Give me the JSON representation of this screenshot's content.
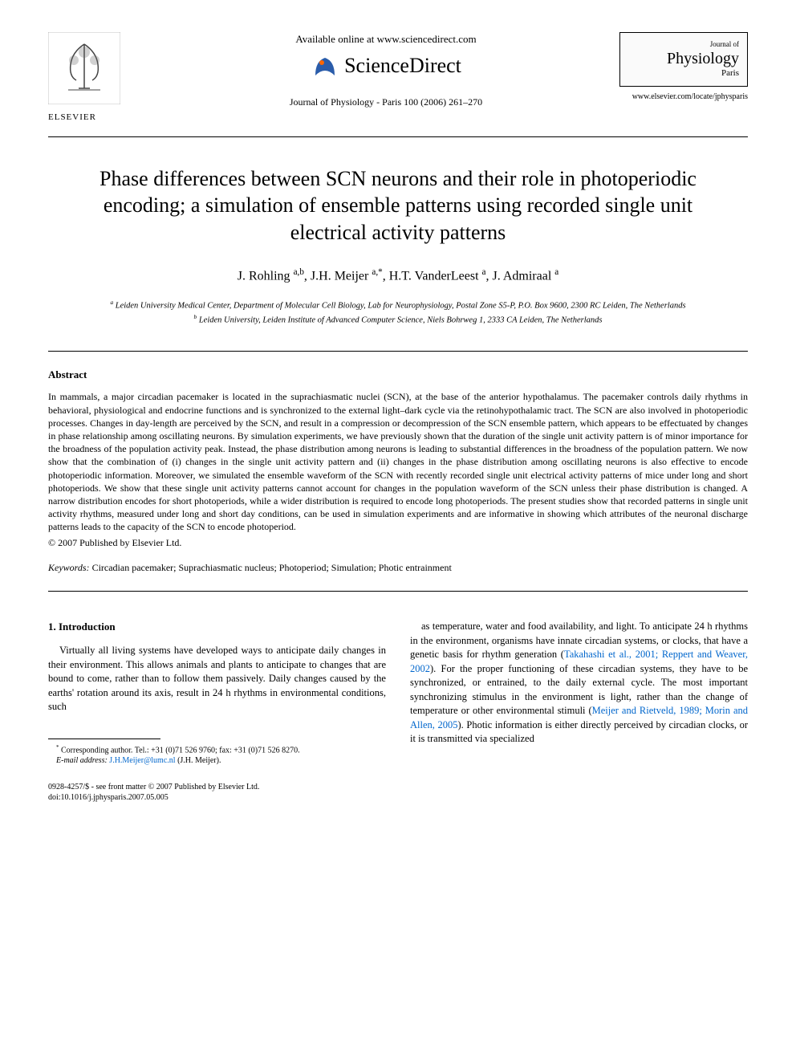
{
  "header": {
    "available_online": "Available online at www.sciencedirect.com",
    "sciencedirect": "ScienceDirect",
    "journal_info": "Journal of Physiology - Paris 100 (2006) 261–270",
    "elsevier": "ELSEVIER",
    "journal_box_small": "Journal of",
    "journal_box_title": "Physiology",
    "journal_box_sub": "Paris",
    "locate_url": "www.elsevier.com/locate/jphysparis"
  },
  "title": "Phase differences between SCN neurons and their role in photoperiodic encoding; a simulation of ensemble patterns using recorded single unit electrical activity patterns",
  "authors_html": "J. Rohling <sup>a,b</sup>, J.H. Meijer <sup>a,*</sup>, H.T. VanderLeest <sup>a</sup>, J. Admiraal <sup>a</sup>",
  "affiliations": {
    "a": "Leiden University Medical Center, Department of Molecular Cell Biology, Lab for Neurophysiology, Postal Zone S5-P, P.O. Box 9600, 2300 RC Leiden, The Netherlands",
    "b": "Leiden University, Leiden Institute of Advanced Computer Science, Niels Bohrweg 1, 2333 CA Leiden, The Netherlands"
  },
  "abstract": {
    "heading": "Abstract",
    "text": "In mammals, a major circadian pacemaker is located in the suprachiasmatic nuclei (SCN), at the base of the anterior hypothalamus. The pacemaker controls daily rhythms in behavioral, physiological and endocrine functions and is synchronized to the external light–dark cycle via the retinohypothalamic tract. The SCN are also involved in photoperiodic processes. Changes in day-length are perceived by the SCN, and result in a compression or decompression of the SCN ensemble pattern, which appears to be effectuated by changes in phase relationship among oscillating neurons. By simulation experiments, we have previously shown that the duration of the single unit activity pattern is of minor importance for the broadness of the population activity peak. Instead, the phase distribution among neurons is leading to substantial differences in the broadness of the population pattern. We now show that the combination of (i) changes in the single unit activity pattern and (ii) changes in the phase distribution among oscillating neurons is also effective to encode photoperiodic information. Moreover, we simulated the ensemble waveform of the SCN with recently recorded single unit electrical activity patterns of mice under long and short photoperiods. We show that these single unit activity patterns cannot account for changes in the population waveform of the SCN unless their phase distribution is changed. A narrow distribution encodes for short photoperiods, while a wider distribution is required to encode long photoperiods. The present studies show that recorded patterns in single unit activity rhythms, measured under long and short day conditions, can be used in simulation experiments and are informative in showing which attributes of the neuronal discharge patterns leads to the capacity of the SCN to encode photoperiod.",
    "copyright": "© 2007 Published by Elsevier Ltd."
  },
  "keywords": {
    "label": "Keywords:",
    "text": "Circadian pacemaker; Suprachiasmatic nucleus; Photoperiod; Simulation; Photic entrainment"
  },
  "intro": {
    "heading": "1. Introduction",
    "col1": "Virtually all living systems have developed ways to anticipate daily changes in their environment. This allows animals and plants to anticipate to changes that are bound to come, rather than to follow them passively. Daily changes caused by the earths' rotation around its axis, result in 24 h rhythms in environmental conditions, such",
    "col2_part1": "as temperature, water and food availability, and light. To anticipate 24 h rhythms in the environment, organisms have innate circadian systems, or clocks, that have a genetic basis for rhythm generation (",
    "col2_ref1": "Takahashi et al., 2001; Reppert and Weaver, 2002",
    "col2_part2": "). For the proper functioning of these circadian systems, they have to be synchronized, or entrained, to the daily external cycle. The most important synchronizing stimulus in the environment is light, rather than the change of temperature or other environmental stimuli (",
    "col2_ref2": "Meijer and Rietveld, 1989; Morin and Allen, 2005",
    "col2_part3": "). Photic information is either directly perceived by circadian clocks, or it is transmitted via specialized"
  },
  "footnote": {
    "corresponding": "Corresponding author. Tel.: +31 (0)71 526 9760; fax: +31 (0)71 526 8270.",
    "email_label": "E-mail address:",
    "email": "J.H.Meijer@lumc.nl",
    "email_name": "(J.H. Meijer)."
  },
  "footer": {
    "line1": "0928-4257/$ - see front matter © 2007 Published by Elsevier Ltd.",
    "line2": "doi:10.1016/j.jphysparis.2007.05.005"
  },
  "colors": {
    "text": "#000000",
    "background": "#ffffff",
    "link": "#0066cc",
    "elsevier_orange": "#ff6600",
    "sd_blue": "#2a5caa"
  }
}
